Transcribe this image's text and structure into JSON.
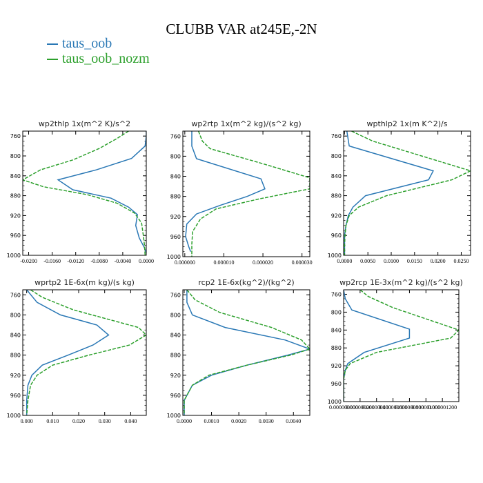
{
  "title": "CLUBB VAR at245E,-2N",
  "legend": [
    {
      "label": "taus_oob",
      "color": "#2a78b5"
    },
    {
      "label": "taus_oob_nozm",
      "color": "#2ca02c",
      "dashed": true
    }
  ],
  "chart_data": [
    {
      "type": "line",
      "title": "wp2thlp   1x(m^2 K)/s^2",
      "xlim": [
        -0.021,
        0.0
      ],
      "ylim": [
        1000,
        750
      ],
      "yticks": [
        760,
        800,
        840,
        880,
        920,
        960,
        1000
      ],
      "xticks": [
        -0.02,
        -0.016,
        -0.012,
        -0.008,
        -0.004,
        0.0
      ],
      "xtick_labels": [
        "-0.0200",
        "-0.0160",
        "-0.0120",
        "-0.0080",
        "-0.0040",
        "0.0000"
      ],
      "series": [
        {
          "name": "taus_oob",
          "x": [
            0.0,
            0.0,
            -0.0002,
            -0.0025,
            -0.0085,
            -0.015,
            -0.0125,
            -0.006,
            -0.003,
            -0.0015,
            -0.0018,
            -0.0012,
            -0.0003,
            0.0
          ],
          "y": [
            750,
            760,
            780,
            805,
            828,
            848,
            868,
            885,
            903,
            918,
            940,
            965,
            985,
            995
          ]
        },
        {
          "name": "taus_oob_nozm",
          "x": [
            -0.003,
            -0.005,
            -0.008,
            -0.0125,
            -0.018,
            -0.021,
            -0.0175,
            -0.01,
            -0.005,
            -0.002,
            -0.0008,
            -0.0005,
            -0.0003,
            -0.0002
          ],
          "y": [
            750,
            765,
            785,
            808,
            828,
            848,
            862,
            878,
            895,
            915,
            935,
            960,
            980,
            1000
          ]
        }
      ]
    },
    {
      "type": "line",
      "title": "wp2rtp   1x(m^2 kg)/(s^2 kg)",
      "xlim": [
        -5e-07,
        3.2e-05
      ],
      "ylim": [
        1000,
        750
      ],
      "yticks": [
        760,
        800,
        840,
        880,
        920,
        960,
        1000
      ],
      "xticks": [
        0.0,
        1e-05,
        2e-05,
        3e-05
      ],
      "xtick_labels": [
        "0.000000",
        "0.000010",
        "0.000020",
        "0.000030"
      ],
      "series": [
        {
          "name": "taus_oob",
          "x": [
            1.8e-06,
            1.8e-06,
            3e-06,
            1.95e-05,
            2.05e-05,
            1.6e-05,
            9e-06,
            3e-06,
            5e-07,
            2e-07,
            1e-06,
            1.5e-06
          ],
          "y": [
            750,
            780,
            805,
            845,
            865,
            880,
            898,
            915,
            935,
            960,
            980,
            990
          ]
        },
        {
          "name": "taus_oob_nozm",
          "x": [
            3.5e-06,
            4.5e-06,
            6.5e-06,
            2e-05,
            3.2e-05,
            3.2e-05,
            1.9e-05,
            8e-06,
            4e-06,
            2e-06,
            1.8e-06,
            1.8e-06
          ],
          "y": [
            750,
            770,
            785,
            815,
            843,
            865,
            885,
            905,
            925,
            950,
            975,
            1000
          ]
        }
      ]
    },
    {
      "type": "line",
      "title": "wpthlp2   1x(m K^2)/s",
      "xlim": [
        -0.0002,
        0.027
      ],
      "ylim": [
        1000,
        750
      ],
      "yticks": [
        760,
        800,
        840,
        880,
        920,
        960,
        1000
      ],
      "xticks": [
        0.0,
        0.005,
        0.01,
        0.015,
        0.02,
        0.025
      ],
      "xtick_labels": [
        "0.0000",
        "0.0050",
        "0.0100",
        "0.0150",
        "0.0200",
        "0.0250"
      ],
      "series": [
        {
          "name": "taus_oob",
          "x": [
            0.0005,
            0.001,
            0.019,
            0.018,
            0.0045,
            0.0018,
            0.0008,
            0.0003,
            0.0,
            0.0,
            0.0
          ],
          "y": [
            750,
            780,
            830,
            848,
            880,
            903,
            920,
            940,
            960,
            980,
            1000
          ]
        },
        {
          "name": "taus_oob_nozm",
          "x": [
            0.0015,
            0.006,
            0.027,
            0.023,
            0.009,
            0.003,
            0.001,
            0.0003,
            0.0001,
            0.0,
            0.0
          ],
          "y": [
            750,
            770,
            830,
            848,
            880,
            903,
            920,
            940,
            960,
            980,
            1000
          ]
        }
      ]
    },
    {
      "type": "line",
      "title": "wprtp2   1E-6x(m kg)/(s kg)",
      "xlim": [
        -0.0015,
        0.046
      ],
      "ylim": [
        1000,
        750
      ],
      "yticks": [
        760,
        800,
        840,
        880,
        920,
        960,
        1000
      ],
      "xticks": [
        0.0,
        0.01,
        0.02,
        0.03,
        0.04
      ],
      "xtick_labels": [
        "0.000",
        "0.010",
        "0.020",
        "0.030",
        "0.040"
      ],
      "series": [
        {
          "name": "taus_oob",
          "x": [
            0.0,
            0.004,
            0.013,
            0.027,
            0.0315,
            0.0255,
            0.016,
            0.006,
            0.002,
            0.0005,
            0.0,
            0.0
          ],
          "y": [
            750,
            775,
            800,
            820,
            840,
            860,
            880,
            900,
            920,
            940,
            970,
            1000
          ]
        },
        {
          "name": "taus_oob_nozm",
          "x": [
            0.0015,
            0.006,
            0.018,
            0.043,
            0.046,
            0.0395,
            0.024,
            0.01,
            0.004,
            0.0015,
            0.0005,
            0.0
          ],
          "y": [
            750,
            765,
            790,
            825,
            840,
            860,
            880,
            900,
            920,
            940,
            970,
            1000
          ]
        }
      ]
    },
    {
      "type": "line",
      "title": "rcp2   1E-6x(kg^2)/(kg^2)",
      "xlim": [
        -5e-05,
        0.0046
      ],
      "ylim": [
        1000,
        750
      ],
      "yticks": [
        760,
        800,
        840,
        880,
        920,
        960,
        1000
      ],
      "xticks": [
        0.0,
        0.001,
        0.002,
        0.003,
        0.004
      ],
      "xtick_labels": [
        "0.0000",
        "0.0010",
        "0.0020",
        "0.0030",
        "0.0040"
      ],
      "series": [
        {
          "name": "taus_oob",
          "x": [
            0.0001,
            0.0001,
            0.0003,
            0.0015,
            0.0037,
            0.0046,
            0.0038,
            0.0023,
            0.001,
            0.0003,
            0.0,
            0.0
          ],
          "y": [
            750,
            775,
            800,
            825,
            850,
            868,
            880,
            900,
            920,
            940,
            970,
            1000
          ]
        },
        {
          "name": "taus_oob_nozm",
          "x": [
            0.0001,
            0.0004,
            0.0013,
            0.0032,
            0.0043,
            0.0046,
            0.0039,
            0.0023,
            0.0009,
            0.0003,
            0.0,
            0.0
          ],
          "y": [
            750,
            770,
            795,
            825,
            850,
            868,
            880,
            900,
            920,
            940,
            970,
            1000
          ]
        }
      ]
    },
    {
      "type": "line",
      "title": "wp2rcp   1E-3x(m^2 kg)/(s^2 kg)",
      "xlim": [
        0.0,
        1.4e-06
      ],
      "ylim": [
        1000,
        750
      ],
      "yticks": [
        760,
        800,
        840,
        880,
        920,
        960,
        1000
      ],
      "xticks": [
        0.0,
        2e-07,
        4e-07,
        6e-07,
        8e-07,
        1e-06,
        1.2e-06
      ],
      "xtick_labels": [
        "0.000000000",
        "0.000000200",
        "0.000000400",
        "0.000000600",
        "0.000000800",
        "0.000001000",
        "0.000001200"
      ],
      "series": [
        {
          "name": "taus_oob",
          "x": [
            0.0,
            2e-08,
            1e-07,
            8e-07,
            8e-07,
            2.5e-07,
            5e-08,
            2e-08,
            0.0,
            0.0,
            0.0
          ],
          "y": [
            750,
            770,
            795,
            838,
            858,
            890,
            915,
            930,
            950,
            970,
            1000
          ]
        },
        {
          "name": "taus_oob_nozm",
          "x": [
            2e-07,
            3e-07,
            6e-07,
            1.4e-06,
            1.3e-06,
            4e-07,
            8e-08,
            2e-08,
            0.0,
            0.0,
            0.0
          ],
          "y": [
            750,
            765,
            790,
            840,
            858,
            890,
            915,
            930,
            950,
            970,
            1000
          ]
        }
      ]
    }
  ]
}
